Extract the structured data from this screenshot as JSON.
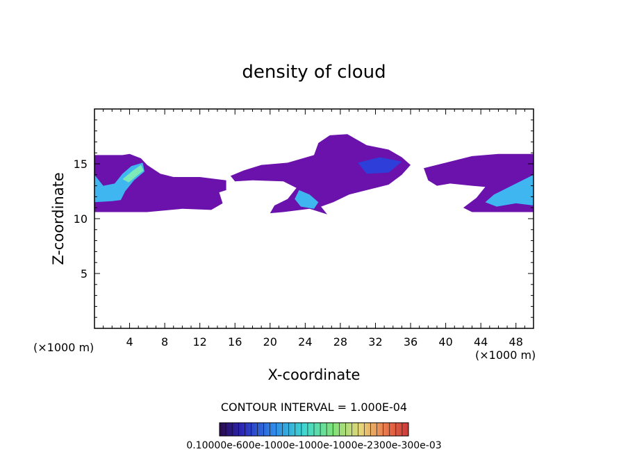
{
  "chart_data": {
    "type": "heatmap",
    "title": "density of cloud",
    "xlabel": "X-coordinate",
    "ylabel": "Z-coordinate",
    "x_unit": "(×1000 m)",
    "z_unit": "(×1000 m)",
    "xlim": [
      0,
      50
    ],
    "ylim": [
      0,
      20
    ],
    "x_ticks": [
      4,
      8,
      12,
      16,
      20,
      24,
      28,
      32,
      36,
      40,
      44,
      48
    ],
    "y_ticks": [
      5,
      10,
      15
    ],
    "contour_interval_text": "CONTOUR INTERVAL = 1.000E-04",
    "colorbar": {
      "min": 0.0001,
      "max": 0.003,
      "label_text": "0.10000e-600e-1000e-1000e-1000e-2300e-300e-03"
    },
    "colors": {
      "background": "#ffffff",
      "low": "#6b12ad",
      "mid": "#2d3fd8",
      "high": "#3fb6f0",
      "peak": "#7de8b8"
    },
    "regions": [
      {
        "name": "left-band",
        "polygon": [
          [
            0,
            15.8
          ],
          [
            3.2,
            15.8
          ],
          [
            4,
            15.9
          ],
          [
            5.3,
            15.5
          ],
          [
            6,
            14.9
          ],
          [
            7.5,
            14.1
          ],
          [
            9,
            13.8
          ],
          [
            12,
            13.8
          ],
          [
            15,
            13.5
          ],
          [
            15,
            12.6
          ],
          [
            14.2,
            12.4
          ],
          [
            14.6,
            11.4
          ],
          [
            13.3,
            10.8
          ],
          [
            10,
            10.9
          ],
          [
            6,
            10.6
          ],
          [
            0,
            10.6
          ]
        ],
        "level": 1
      },
      {
        "name": "center-cloud",
        "polygon": [
          [
            15.5,
            13.9
          ],
          [
            17,
            14.4
          ],
          [
            19,
            14.9
          ],
          [
            22,
            15.1
          ],
          [
            25,
            15.8
          ],
          [
            25.5,
            16.9
          ],
          [
            26.8,
            17.6
          ],
          [
            28.8,
            17.7
          ],
          [
            31,
            16.7
          ],
          [
            33.5,
            16.3
          ],
          [
            35,
            15.6
          ],
          [
            36,
            14.9
          ],
          [
            35,
            14.0
          ],
          [
            33.5,
            13.1
          ],
          [
            31,
            12.6
          ],
          [
            29,
            12.2
          ],
          [
            27.2,
            11.5
          ],
          [
            25.8,
            11.1
          ],
          [
            26.5,
            10.4
          ],
          [
            24.5,
            10.9
          ],
          [
            21.5,
            10.6
          ],
          [
            20,
            10.5
          ],
          [
            20.5,
            11.2
          ],
          [
            22,
            11.8
          ],
          [
            23,
            12.8
          ],
          [
            21.5,
            13.4
          ],
          [
            18,
            13.5
          ],
          [
            16,
            13.4
          ]
        ],
        "level": 1
      },
      {
        "name": "right-band",
        "polygon": [
          [
            37.5,
            14.6
          ],
          [
            40,
            15.1
          ],
          [
            43,
            15.7
          ],
          [
            46,
            15.9
          ],
          [
            50,
            15.9
          ],
          [
            50,
            10.6
          ],
          [
            43,
            10.6
          ],
          [
            42,
            11.0
          ],
          [
            43.5,
            11.9
          ],
          [
            44.5,
            12.9
          ],
          [
            43,
            13.0
          ],
          [
            40.5,
            13.2
          ],
          [
            39,
            13.0
          ],
          [
            38,
            13.5
          ]
        ],
        "level": 1
      },
      {
        "name": "left-core",
        "polygon": [
          [
            0,
            14.0
          ],
          [
            1,
            13.0
          ],
          [
            2.3,
            13.2
          ],
          [
            3.2,
            14.1
          ],
          [
            4.2,
            14.8
          ],
          [
            5.5,
            15.1
          ],
          [
            5.7,
            14.3
          ],
          [
            4.5,
            13.5
          ],
          [
            3.5,
            12.5
          ],
          [
            3,
            11.7
          ],
          [
            2,
            11.6
          ],
          [
            0,
            11.5
          ]
        ],
        "level": 2
      },
      {
        "name": "left-peak",
        "polygon": [
          [
            3.2,
            13.6
          ],
          [
            4.4,
            14.4
          ],
          [
            5.3,
            14.9
          ],
          [
            5.6,
            14.4
          ],
          [
            4.8,
            13.9
          ],
          [
            3.9,
            13.3
          ]
        ],
        "level": 3
      },
      {
        "name": "right-core",
        "polygon": [
          [
            50,
            14.0
          ],
          [
            48.5,
            13.4
          ],
          [
            47,
            12.8
          ],
          [
            45.5,
            12.2
          ],
          [
            44.5,
            11.5
          ],
          [
            45.8,
            11.1
          ],
          [
            48,
            11.4
          ],
          [
            50,
            11.2
          ]
        ],
        "level": 2
      },
      {
        "name": "center-core",
        "polygon": [
          [
            23.3,
            12.6
          ],
          [
            24.5,
            12.2
          ],
          [
            25.5,
            11.5
          ],
          [
            25,
            10.9
          ],
          [
            23.5,
            11.1
          ],
          [
            22.8,
            11.8
          ]
        ],
        "level": 2
      },
      {
        "name": "center-upper-core",
        "polygon": [
          [
            30,
            15.1
          ],
          [
            32.5,
            15.6
          ],
          [
            35,
            15.2
          ],
          [
            33.5,
            14.2
          ],
          [
            31,
            14.1
          ]
        ],
        "level": 1.6
      }
    ]
  }
}
